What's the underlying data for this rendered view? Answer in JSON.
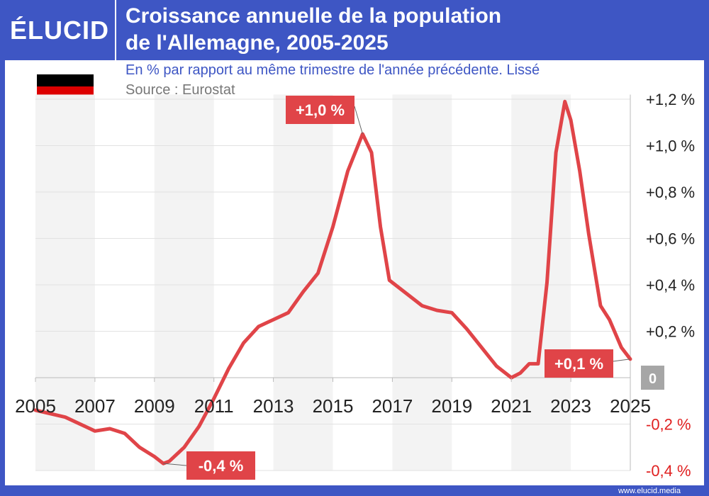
{
  "header": {
    "logo": "ÉLUCID",
    "title_line1": "Croissance annuelle de la population",
    "title_line2": "de l'Allemagne, 2005-2025",
    "subtitle": "En % par rapport au même trimestre de l'année précédente. Lissé",
    "source": "Source : Eurostat",
    "footer": "www.elucid.media"
  },
  "colors": {
    "brand": "#3e56c4",
    "line": "#e04448",
    "negative_label": "#e02020",
    "zero_badge": "#a6a6a6",
    "flag": [
      "#000000",
      "#dd0000",
      "#ffce00"
    ]
  },
  "chart_data": {
    "type": "line",
    "title": "Croissance annuelle de la population de l'Allemagne, 2005-2025",
    "xlim": [
      2005,
      2025
    ],
    "ylim": [
      -0.4,
      1.2
    ],
    "x_ticks": [
      "2005",
      "2007",
      "2009",
      "2011",
      "2013",
      "2015",
      "2017",
      "2019",
      "2021",
      "2023",
      "2025"
    ],
    "y_ticks": [
      {
        "v": 1.2,
        "label": "+1,2 %"
      },
      {
        "v": 1.0,
        "label": "+1,0 %"
      },
      {
        "v": 0.8,
        "label": "+0,8 %"
      },
      {
        "v": 0.6,
        "label": "+0,6 %"
      },
      {
        "v": 0.4,
        "label": "+0,4 %"
      },
      {
        "v": 0.2,
        "label": "+0,2 %"
      },
      {
        "v": -0.2,
        "label": "-0,2 %"
      },
      {
        "v": -0.4,
        "label": "-0,4 %"
      }
    ],
    "zero_label": "0",
    "grid": true,
    "y_axis_side": "right",
    "x": [
      2005,
      2006,
      2007,
      2007.5,
      2008,
      2008.5,
      2009,
      2009.3,
      2009.5,
      2010,
      2010.5,
      2011,
      2011.5,
      2012,
      2012.5,
      2013,
      2013.5,
      2014,
      2014.5,
      2015,
      2015.5,
      2016,
      2016.3,
      2016.6,
      2016.9,
      2017.5,
      2018,
      2018.5,
      2019,
      2019.5,
      2020,
      2020.5,
      2021,
      2021.3,
      2021.6,
      2021.9,
      2022.2,
      2022.5,
      2022.8,
      2023,
      2023.3,
      2023.6,
      2024,
      2024.3,
      2024.7,
      2025
    ],
    "y": [
      -0.14,
      -0.17,
      -0.23,
      -0.22,
      -0.24,
      -0.3,
      -0.34,
      -0.37,
      -0.36,
      -0.3,
      -0.21,
      -0.09,
      0.04,
      0.15,
      0.22,
      0.25,
      0.28,
      0.37,
      0.45,
      0.65,
      0.89,
      1.05,
      0.97,
      0.65,
      0.42,
      0.36,
      0.31,
      0.29,
      0.28,
      0.21,
      0.13,
      0.05,
      0.0,
      0.02,
      0.06,
      0.06,
      0.41,
      0.97,
      1.19,
      1.11,
      0.89,
      0.62,
      0.31,
      0.25,
      0.13,
      0.08
    ],
    "annotations": [
      {
        "label": "+1,0 %",
        "x": 2016,
        "y": 1.05
      },
      {
        "label": "-0,4 %",
        "x": 2009.3,
        "y": -0.37
      },
      {
        "label": "+0,1 %",
        "x": 2025,
        "y": 0.08
      }
    ]
  }
}
